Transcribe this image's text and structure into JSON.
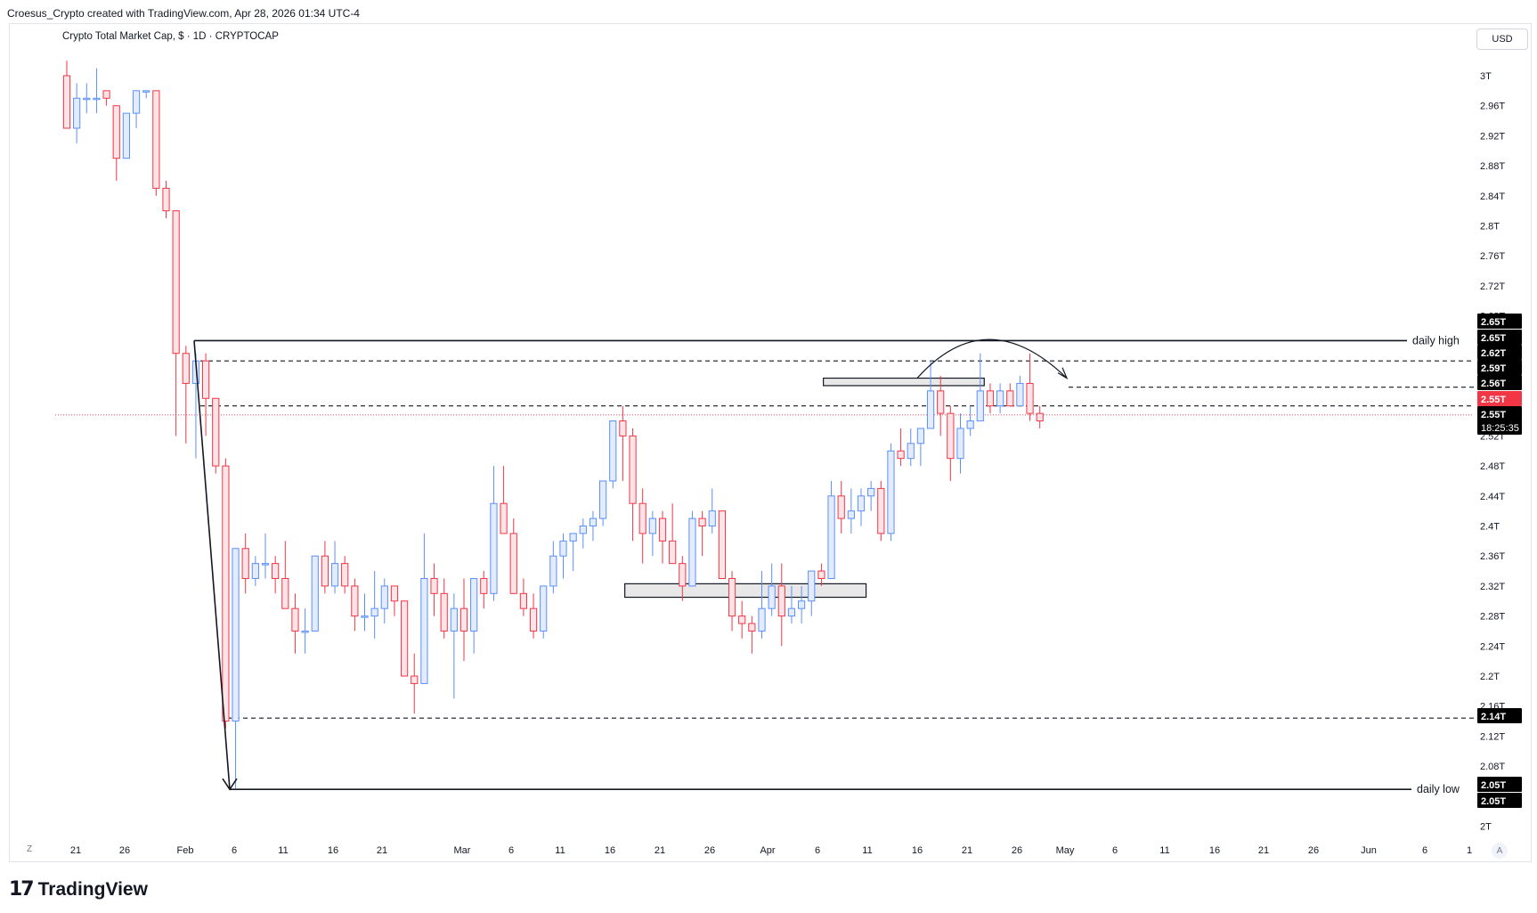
{
  "header": {
    "attribution": "Croesus_Crypto created with TradingView.com, Apr 28, 2026 01:34 UTC-4",
    "legend": "Crypto Total Market Cap, $ · 1D · CRYPTOCAP",
    "currency": "USD",
    "brand": "TradingView",
    "brand_mark": "17",
    "zoom_button": "Z",
    "auto_button": "A"
  },
  "colors": {
    "up": "#5b8ff9",
    "up_fill": "#e3ecff",
    "down": "#f23645",
    "down_fill": "#ffe3e6",
    "line": "#131722",
    "last_price": "#f23645"
  },
  "chart_data": {
    "type": "candlestick",
    "title": "Crypto Total Market Cap, $ · 1D · CRYPTOCAP",
    "unit": "USD trillions",
    "ylim": [
      1.98,
      3.05
    ],
    "y_ticks": [
      "3T",
      "2.96T",
      "2.92T",
      "2.88T",
      "2.84T",
      "2.8T",
      "2.76T",
      "2.72T",
      "2.68T",
      "2.64T",
      "2.6T",
      "2.56T",
      "2.52T",
      "2.48T",
      "2.44T",
      "2.4T",
      "2.36T",
      "2.32T",
      "2.28T",
      "2.24T",
      "2.2T",
      "2.16T",
      "2.12T",
      "2.08T",
      "2.04T",
      "2T"
    ],
    "x_ticks": [
      "21",
      "26",
      "Feb",
      "6",
      "11",
      "16",
      "21",
      "Mar",
      "6",
      "11",
      "16",
      "21",
      "26",
      "Apr",
      "6",
      "11",
      "16",
      "21",
      "26",
      "May",
      "6",
      "11",
      "16",
      "21",
      "26",
      "Jun",
      "6",
      "1"
    ],
    "price_labels": [
      {
        "text": "2.65T",
        "kind": "black"
      },
      {
        "text": "2.65T",
        "kind": "black"
      },
      {
        "text": "2.62T",
        "kind": "black"
      },
      {
        "text": "2.59T",
        "kind": "black"
      },
      {
        "text": "2.56T",
        "kind": "black"
      },
      {
        "text": "2.55T",
        "kind": "red"
      },
      {
        "text": "2.55T",
        "kind": "black"
      },
      {
        "text": "18:25:35",
        "kind": "black"
      },
      {
        "text": "2.14T",
        "kind": "black"
      },
      {
        "text": "2.05T",
        "kind": "black"
      },
      {
        "text": "2.05T",
        "kind": "black"
      }
    ],
    "levels": [
      {
        "label": "daily high",
        "value": 2.647,
        "style": "solid"
      },
      {
        "label": "",
        "value": 2.62,
        "style": "dashed"
      },
      {
        "label": "",
        "value": 2.585,
        "style": "dashed"
      },
      {
        "label": "",
        "value": 2.56,
        "style": "dashed"
      },
      {
        "label": "",
        "value": 2.144,
        "style": "dashed"
      },
      {
        "label": "daily low",
        "value": 2.049,
        "style": "solid"
      }
    ],
    "annotations": [
      {
        "type": "zone",
        "x_from": "Feb 22",
        "x_to": "Apr 10",
        "y_from": 2.305,
        "y_to": 2.323
      },
      {
        "type": "zone",
        "x_from": "Apr 14",
        "x_to": "Apr 26",
        "y_from": 2.587,
        "y_to": 2.597
      },
      {
        "type": "arrow",
        "from": "Feb 1 at 2.647",
        "to": "Feb 6 at 2.049"
      },
      {
        "type": "arc",
        "label": ""
      }
    ],
    "series": [
      {
        "values": [
          [
            3.0,
            3.02,
            2.93,
            2.93
          ],
          [
            2.93,
            2.99,
            2.91,
            2.97
          ],
          [
            2.97,
            2.99,
            2.95,
            2.97
          ],
          [
            2.97,
            3.01,
            2.95,
            2.97
          ],
          [
            2.98,
            2.98,
            2.96,
            2.97
          ],
          [
            2.96,
            2.96,
            2.86,
            2.89
          ],
          [
            2.89,
            2.95,
            2.89,
            2.95
          ],
          [
            2.95,
            2.98,
            2.93,
            2.98
          ],
          [
            2.98,
            2.98,
            2.97,
            2.98
          ],
          [
            2.98,
            2.98,
            2.84,
            2.85
          ],
          [
            2.85,
            2.86,
            2.81,
            2.82
          ],
          [
            2.82,
            2.82,
            2.52,
            2.63
          ],
          [
            2.63,
            2.64,
            2.51,
            2.59
          ],
          [
            2.59,
            2.63,
            2.49,
            2.62
          ],
          [
            2.62,
            2.63,
            2.52,
            2.57
          ],
          [
            2.57,
            2.57,
            2.47,
            2.48
          ],
          [
            2.48,
            2.49,
            2.13,
            2.14
          ],
          [
            2.14,
            2.37,
            2.05,
            2.37
          ],
          [
            2.37,
            2.39,
            2.31,
            2.33
          ],
          [
            2.33,
            2.36,
            2.32,
            2.35
          ],
          [
            2.35,
            2.39,
            2.33,
            2.35
          ],
          [
            2.35,
            2.36,
            2.31,
            2.33
          ],
          [
            2.33,
            2.38,
            2.29,
            2.29
          ],
          [
            2.29,
            2.31,
            2.23,
            2.26
          ],
          [
            2.26,
            2.29,
            2.23,
            2.26
          ],
          [
            2.26,
            2.36,
            2.26,
            2.36
          ],
          [
            2.36,
            2.38,
            2.31,
            2.32
          ],
          [
            2.32,
            2.38,
            2.31,
            2.35
          ],
          [
            2.35,
            2.36,
            2.31,
            2.32
          ],
          [
            2.32,
            2.33,
            2.26,
            2.28
          ],
          [
            2.28,
            2.31,
            2.26,
            2.28
          ],
          [
            2.28,
            2.34,
            2.25,
            2.29
          ],
          [
            2.29,
            2.33,
            2.27,
            2.32
          ],
          [
            2.32,
            2.32,
            2.28,
            2.3
          ],
          [
            2.3,
            2.3,
            2.26,
            2.2
          ],
          [
            2.2,
            2.23,
            2.15,
            2.19
          ],
          [
            2.19,
            2.39,
            2.19,
            2.33
          ],
          [
            2.33,
            2.35,
            2.28,
            2.31
          ],
          [
            2.31,
            2.33,
            2.25,
            2.26
          ],
          [
            2.26,
            2.31,
            2.17,
            2.29
          ],
          [
            2.29,
            2.33,
            2.22,
            2.26
          ],
          [
            2.26,
            2.33,
            2.23,
            2.33
          ],
          [
            2.33,
            2.34,
            2.29,
            2.31
          ],
          [
            2.31,
            2.48,
            2.3,
            2.43
          ],
          [
            2.43,
            2.48,
            2.41,
            2.39
          ],
          [
            2.39,
            2.41,
            2.31,
            2.31
          ],
          [
            2.31,
            2.33,
            2.28,
            2.29
          ],
          [
            2.29,
            2.31,
            2.25,
            2.26
          ],
          [
            2.26,
            2.32,
            2.25,
            2.32
          ],
          [
            2.32,
            2.38,
            2.31,
            2.36
          ],
          [
            2.36,
            2.39,
            2.33,
            2.38
          ],
          [
            2.38,
            2.39,
            2.34,
            2.39
          ],
          [
            2.39,
            2.41,
            2.37,
            2.4
          ],
          [
            2.4,
            2.42,
            2.38,
            2.41
          ],
          [
            2.41,
            2.46,
            2.4,
            2.46
          ],
          [
            2.46,
            2.53,
            2.45,
            2.54
          ],
          [
            2.54,
            2.56,
            2.46,
            2.52
          ],
          [
            2.52,
            2.53,
            2.38,
            2.43
          ],
          [
            2.43,
            2.45,
            2.35,
            2.39
          ],
          [
            2.39,
            2.42,
            2.36,
            2.41
          ],
          [
            2.41,
            2.42,
            2.35,
            2.38
          ],
          [
            2.38,
            2.43,
            2.35,
            2.35
          ],
          [
            2.35,
            2.36,
            2.3,
            2.32
          ],
          [
            2.32,
            2.42,
            2.32,
            2.41
          ],
          [
            2.41,
            2.42,
            2.36,
            2.4
          ],
          [
            2.4,
            2.45,
            2.39,
            2.42
          ],
          [
            2.42,
            2.42,
            2.33,
            2.33
          ],
          [
            2.33,
            2.34,
            2.26,
            2.28
          ],
          [
            2.28,
            2.3,
            2.25,
            2.27
          ],
          [
            2.27,
            2.28,
            2.23,
            2.26
          ],
          [
            2.26,
            2.34,
            2.25,
            2.29
          ],
          [
            2.29,
            2.35,
            2.28,
            2.32
          ],
          [
            2.32,
            2.35,
            2.24,
            2.28
          ],
          [
            2.28,
            2.32,
            2.27,
            2.29
          ],
          [
            2.29,
            2.32,
            2.27,
            2.3
          ],
          [
            2.3,
            2.33,
            2.28,
            2.34
          ],
          [
            2.34,
            2.35,
            2.32,
            2.33
          ],
          [
            2.33,
            2.46,
            2.33,
            2.44
          ],
          [
            2.44,
            2.46,
            2.39,
            2.41
          ],
          [
            2.41,
            2.45,
            2.39,
            2.42
          ],
          [
            2.42,
            2.45,
            2.4,
            2.44
          ],
          [
            2.44,
            2.46,
            2.42,
            2.45
          ],
          [
            2.45,
            2.46,
            2.38,
            2.39
          ],
          [
            2.39,
            2.51,
            2.38,
            2.5
          ],
          [
            2.5,
            2.53,
            2.48,
            2.49
          ],
          [
            2.49,
            2.53,
            2.48,
            2.51
          ],
          [
            2.51,
            2.53,
            2.48,
            2.53
          ],
          [
            2.53,
            2.62,
            2.53,
            2.58
          ],
          [
            2.58,
            2.6,
            2.52,
            2.55
          ],
          [
            2.55,
            2.56,
            2.46,
            2.49
          ],
          [
            2.49,
            2.55,
            2.47,
            2.53
          ],
          [
            2.53,
            2.56,
            2.52,
            2.54
          ],
          [
            2.54,
            2.63,
            2.54,
            2.58
          ],
          [
            2.58,
            2.59,
            2.55,
            2.56
          ],
          [
            2.56,
            2.59,
            2.55,
            2.58
          ],
          [
            2.58,
            2.59,
            2.56,
            2.56
          ],
          [
            2.56,
            2.6,
            2.56,
            2.59
          ],
          [
            2.59,
            2.63,
            2.54,
            2.55
          ],
          [
            2.55,
            2.56,
            2.53,
            2.54
          ]
        ]
      }
    ]
  }
}
